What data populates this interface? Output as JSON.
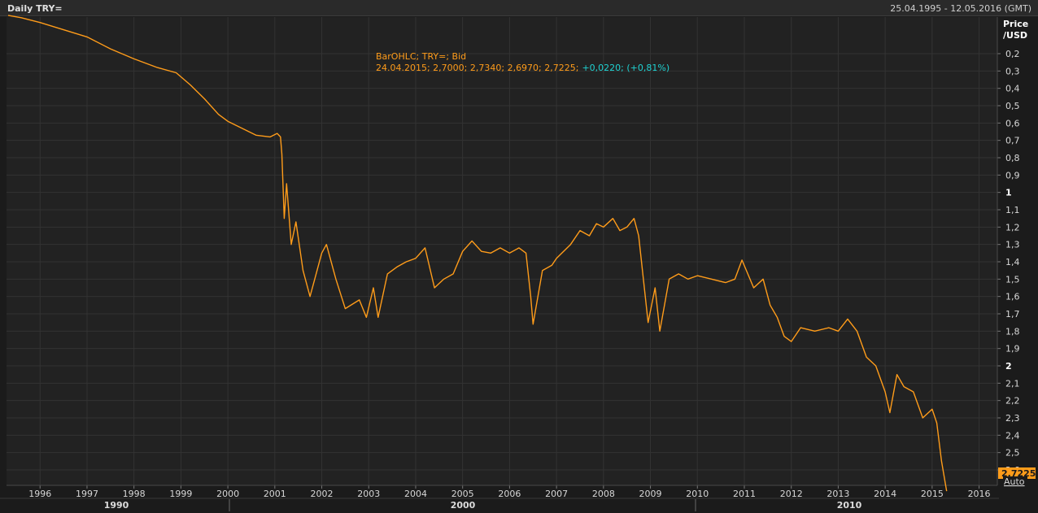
{
  "window": {
    "title": "Daily TRY=",
    "date_range": "25.04.1995 - 12.05.2016 (GMT)"
  },
  "legend": {
    "line1": "BarOHLC; TRY=; Bid",
    "line2_ohlc": "24.04.2015; 2,7000; 2,7340; 2,6970; 2,7225;",
    "line2_change": "+0,0220; (+0,81%)"
  },
  "y_axis_label": [
    "Price",
    "/USD"
  ],
  "last_value_badge": "2,7225",
  "auto_button": "Auto",
  "colors": {
    "series": "#ff9c1a",
    "change": "#1fd2d2",
    "badge": "#ff9c1a"
  },
  "chart_data": {
    "type": "line",
    "series": [
      {
        "name": "TRY= Bid",
        "x": [
          1995.32,
          1995.6,
          1996.0,
          1996.5,
          1997.0,
          1997.5,
          1998.0,
          1998.5,
          1998.9,
          1999.2,
          1999.5,
          1999.8,
          2000.0,
          2000.3,
          2000.6,
          2000.9,
          2001.05,
          2001.12,
          2001.15,
          2001.2,
          2001.25,
          2001.35,
          2001.45,
          2001.6,
          2001.75,
          2001.85,
          2002.0,
          2002.1,
          2002.3,
          2002.5,
          2002.8,
          2002.95,
          2003.1,
          2003.2,
          2003.4,
          2003.6,
          2003.8,
          2004.0,
          2004.2,
          2004.4,
          2004.6,
          2004.8,
          2005.0,
          2005.2,
          2005.4,
          2005.6,
          2005.8,
          2006.0,
          2006.2,
          2006.35,
          2006.45,
          2006.5,
          2006.7,
          2006.9,
          2007.0,
          2007.3,
          2007.5,
          2007.7,
          2007.85,
          2008.0,
          2008.2,
          2008.35,
          2008.5,
          2008.65,
          2008.75,
          2008.85,
          2008.95,
          2009.1,
          2009.2,
          2009.4,
          2009.6,
          2009.8,
          2010.0,
          2010.3,
          2010.6,
          2010.8,
          2010.95,
          2011.2,
          2011.4,
          2011.55,
          2011.7,
          2011.85,
          2012.0,
          2012.2,
          2012.5,
          2012.8,
          2013.0,
          2013.2,
          2013.4,
          2013.6,
          2013.8,
          2014.0,
          2014.1,
          2014.25,
          2014.4,
          2014.6,
          2014.8,
          2015.0,
          2015.1,
          2015.2,
          2015.31
        ],
        "values": [
          0.04,
          0.05,
          0.07,
          0.1,
          0.13,
          0.18,
          0.23,
          0.28,
          0.31,
          0.38,
          0.46,
          0.55,
          0.59,
          0.63,
          0.67,
          0.68,
          0.66,
          0.68,
          0.78,
          1.15,
          0.95,
          1.3,
          1.17,
          1.45,
          1.6,
          1.5,
          1.35,
          1.3,
          1.5,
          1.67,
          1.62,
          1.72,
          1.55,
          1.72,
          1.47,
          1.43,
          1.4,
          1.38,
          1.32,
          1.55,
          1.5,
          1.47,
          1.34,
          1.28,
          1.34,
          1.35,
          1.32,
          1.35,
          1.32,
          1.35,
          1.6,
          1.76,
          1.45,
          1.42,
          1.38,
          1.3,
          1.22,
          1.25,
          1.18,
          1.2,
          1.15,
          1.22,
          1.2,
          1.15,
          1.25,
          1.5,
          1.75,
          1.55,
          1.8,
          1.5,
          1.47,
          1.5,
          1.48,
          1.5,
          1.52,
          1.5,
          1.39,
          1.55,
          1.5,
          1.65,
          1.72,
          1.83,
          1.86,
          1.78,
          1.8,
          1.78,
          1.8,
          1.73,
          1.8,
          1.95,
          2.0,
          2.15,
          2.27,
          2.05,
          2.12,
          2.15,
          2.3,
          2.25,
          2.33,
          2.55,
          2.7225
        ]
      }
    ],
    "x_ticks": [
      "1996",
      "1997",
      "1998",
      "1999",
      "2000",
      "2001",
      "2002",
      "2003",
      "2004",
      "2005",
      "2006",
      "2007",
      "2008",
      "2009",
      "2010",
      "2011",
      "2012",
      "2013",
      "2014",
      "2015",
      "2016"
    ],
    "decade_labels": [
      "1990",
      "2000",
      "2010"
    ],
    "y_ticks": [
      "0,2",
      "0,3",
      "0,4",
      "0,5",
      "0,6",
      "0,7",
      "0,8",
      "0,9",
      "1",
      "1,1",
      "1,2",
      "1,3",
      "1,4",
      "1,5",
      "1,6",
      "1,7",
      "1,8",
      "1,9",
      "2",
      "2,1",
      "2,2",
      "2,3",
      "2,4",
      "2,5",
      "2,6"
    ],
    "y_scale": "reciprocal",
    "xlim": [
      1995.32,
      2016.25
    ],
    "grid": true
  }
}
